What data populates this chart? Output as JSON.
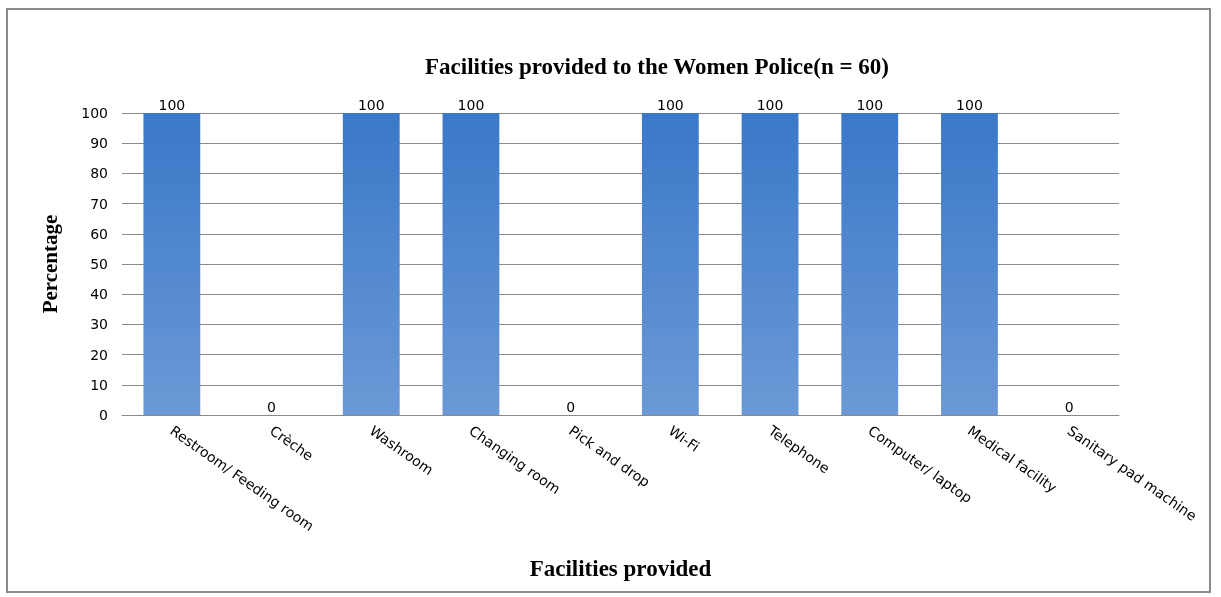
{
  "chart_data": {
    "type": "bar",
    "title": "Facilities provided to the Women Police(n = 60)",
    "xlabel": "Facilities provided",
    "ylabel": "Percentage",
    "categories": [
      "Restroom/ Feeding room",
      "Crèche",
      "Washroom",
      "Changing room",
      "Pick and drop",
      "Wi-Fi",
      "Telephone",
      "Computer/ laptop",
      "Medical facility",
      "Sanitary pad machine"
    ],
    "values": [
      100,
      0,
      100,
      100,
      0,
      100,
      100,
      100,
      100,
      0
    ],
    "color": "#3a78c9",
    "ylim": [
      0,
      100
    ],
    "yticks": [
      0,
      10,
      20,
      30,
      40,
      50,
      60,
      70,
      80,
      90,
      100
    ],
    "grid": "y",
    "data_labels": true
  }
}
